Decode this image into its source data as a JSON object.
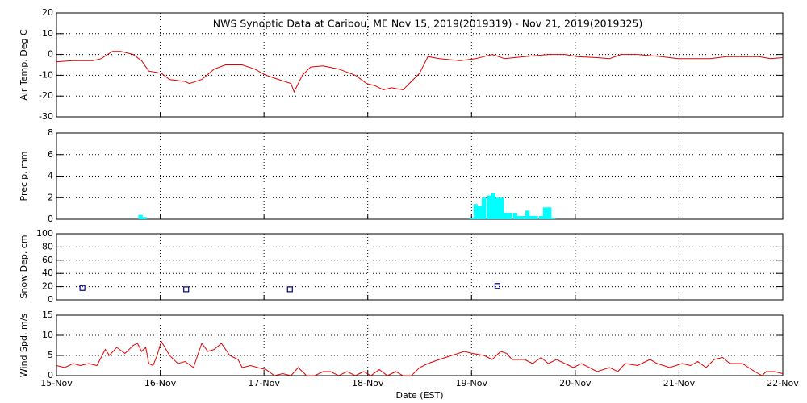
{
  "chart_data": [
    {
      "type": "line",
      "title": "NWS Synoptic Data at Caribou, ME   Nov 15, 2019(2019319) - Nov 21, 2019(2019325)",
      "y_label": "Air Temp, Deg C",
      "color": "#e00000",
      "grid": true,
      "xlim": [
        0,
        7
      ],
      "xticks": [
        0,
        1,
        2,
        3,
        4,
        5,
        6,
        7
      ],
      "ylim": [
        -30,
        20
      ],
      "yticks": [
        -30,
        -20,
        -10,
        0,
        10,
        20
      ],
      "x": [
        0,
        0.16,
        0.35,
        0.43,
        0.54,
        0.62,
        0.74,
        0.82,
        0.89,
        1.01,
        1.09,
        1.24,
        1.28,
        1.4,
        1.52,
        1.63,
        1.79,
        1.91,
        2.02,
        2.14,
        2.26,
        2.29,
        2.37,
        2.45,
        2.57,
        2.72,
        2.88,
        2.99,
        3.07,
        3.15,
        3.23,
        3.34,
        3.5,
        3.58,
        3.69,
        3.89,
        4.04,
        4.2,
        4.32,
        4.51,
        4.74,
        4.9,
        5.02,
        5.21,
        5.33,
        5.44,
        5.6,
        5.83,
        5.99,
        6.3,
        6.46,
        6.77,
        6.88,
        7
      ],
      "values": [
        -3.5,
        -3,
        -3,
        -2,
        1.5,
        1.5,
        0,
        -3,
        -8,
        -9,
        -12,
        -13,
        -14,
        -12,
        -7,
        -5,
        -5,
        -7,
        -10,
        -12,
        -14,
        -18,
        -10,
        -6,
        -5.5,
        -7,
        -10,
        -14,
        -15,
        -17,
        -16,
        -17,
        -9,
        -1,
        -2,
        -3,
        -2,
        0,
        -2,
        -1,
        0,
        0,
        -1,
        -1.5,
        -2,
        0,
        0,
        -1,
        -2,
        -2,
        -1,
        -1,
        -2,
        -1.5
      ]
    },
    {
      "type": "bar",
      "y_label": "Precip, mm",
      "color": "#00ffff",
      "grid": true,
      "xlim": [
        0,
        7
      ],
      "xticks": [
        0,
        1,
        2,
        3,
        4,
        5,
        6,
        7
      ],
      "ylim": [
        0,
        8
      ],
      "yticks": [
        0,
        2,
        4,
        6,
        8
      ],
      "x": [
        0.81,
        0.85,
        4.0,
        4.04,
        4.08,
        4.12,
        4.17,
        4.21,
        4.25,
        4.29,
        4.33,
        4.37,
        4.42,
        4.46,
        4.5,
        4.54,
        4.58,
        4.62,
        4.67,
        4.71,
        4.75,
        4.79
      ],
      "values": [
        0.4,
        0.2,
        0.1,
        1.4,
        1.2,
        2.0,
        2.2,
        2.4,
        2.0,
        2.0,
        0.6,
        0.6,
        0.6,
        0.3,
        0.3,
        0.8,
        0.3,
        0.3,
        0.3,
        1.1,
        1.1,
        0.1
      ]
    },
    {
      "type": "scatter",
      "y_label": "Snow Dep, cm",
      "color": "#000080",
      "grid": true,
      "xlim": [
        0,
        7
      ],
      "xticks": [
        0,
        1,
        2,
        3,
        4,
        5,
        6,
        7
      ],
      "ylim": [
        0,
        100
      ],
      "yticks": [
        0,
        20,
        40,
        60,
        80,
        100
      ],
      "x": [
        0.25,
        1.25,
        2.25,
        4.25
      ],
      "values": [
        18,
        16,
        16,
        21
      ]
    },
    {
      "type": "line",
      "y_label": "Wind Spd, m/s",
      "x_label": "Date (EST)",
      "color": "#e00000",
      "grid": true,
      "xlim": [
        0,
        7
      ],
      "xticks": [
        {
          "value": 0,
          "label": "15-Nov"
        },
        {
          "value": 1,
          "label": "16-Nov"
        },
        {
          "value": 2,
          "label": "17-Nov"
        },
        {
          "value": 3,
          "label": "18-Nov"
        },
        {
          "value": 4,
          "label": "19-Nov"
        },
        {
          "value": 5,
          "label": "20-Nov"
        },
        {
          "value": 6,
          "label": "21-Nov"
        },
        {
          "value": 7,
          "label": "22-Nov"
        }
      ],
      "ylim": [
        0,
        15
      ],
      "yticks": [
        0,
        5,
        10,
        15
      ],
      "x": [
        0,
        0.08,
        0.16,
        0.23,
        0.31,
        0.39,
        0.47,
        0.51,
        0.58,
        0.66,
        0.74,
        0.78,
        0.82,
        0.86,
        0.89,
        0.93,
        0.97,
        1.01,
        1.09,
        1.17,
        1.24,
        1.32,
        1.4,
        1.46,
        1.52,
        1.59,
        1.67,
        1.75,
        1.79,
        1.87,
        1.94,
        2.02,
        2.1,
        2.18,
        2.26,
        2.33,
        2.41,
        2.49,
        2.57,
        2.64,
        2.72,
        2.8,
        2.88,
        2.96,
        3.03,
        3.11,
        3.19,
        3.27,
        3.34,
        3.42,
        3.5,
        3.58,
        3.69,
        3.81,
        3.93,
        4.01,
        4.12,
        4.2,
        4.28,
        4.34,
        4.39,
        4.51,
        4.59,
        4.67,
        4.74,
        4.82,
        4.9,
        4.98,
        5.06,
        5.21,
        5.33,
        5.41,
        5.48,
        5.6,
        5.72,
        5.79,
        5.91,
        6.03,
        6.11,
        6.18,
        6.26,
        6.34,
        6.42,
        6.49,
        6.61,
        6.73,
        6.8,
        6.84,
        6.92,
        7
      ],
      "values": [
        2.5,
        2,
        3,
        2.5,
        3,
        2.5,
        6.5,
        5,
        7,
        5.5,
        7.5,
        8,
        6,
        7,
        3,
        2.5,
        5,
        8.5,
        5,
        3,
        3.5,
        2,
        8,
        6,
        6.5,
        8,
        5,
        4,
        2,
        2.5,
        2,
        1.5,
        0,
        0.5,
        0,
        2,
        0,
        0,
        1,
        1,
        0,
        1,
        0,
        1,
        0,
        1.5,
        0,
        1,
        0,
        0,
        2,
        3,
        4,
        5,
        6,
        5.5,
        5,
        4,
        6,
        5.5,
        4,
        4,
        3,
        4.5,
        3,
        4,
        3,
        2,
        3,
        1,
        2,
        1,
        3,
        2.5,
        4,
        3,
        2,
        3,
        2.5,
        3.5,
        2,
        4,
        4.5,
        3,
        3,
        1,
        0,
        1,
        1,
        0.5
      ]
    }
  ]
}
